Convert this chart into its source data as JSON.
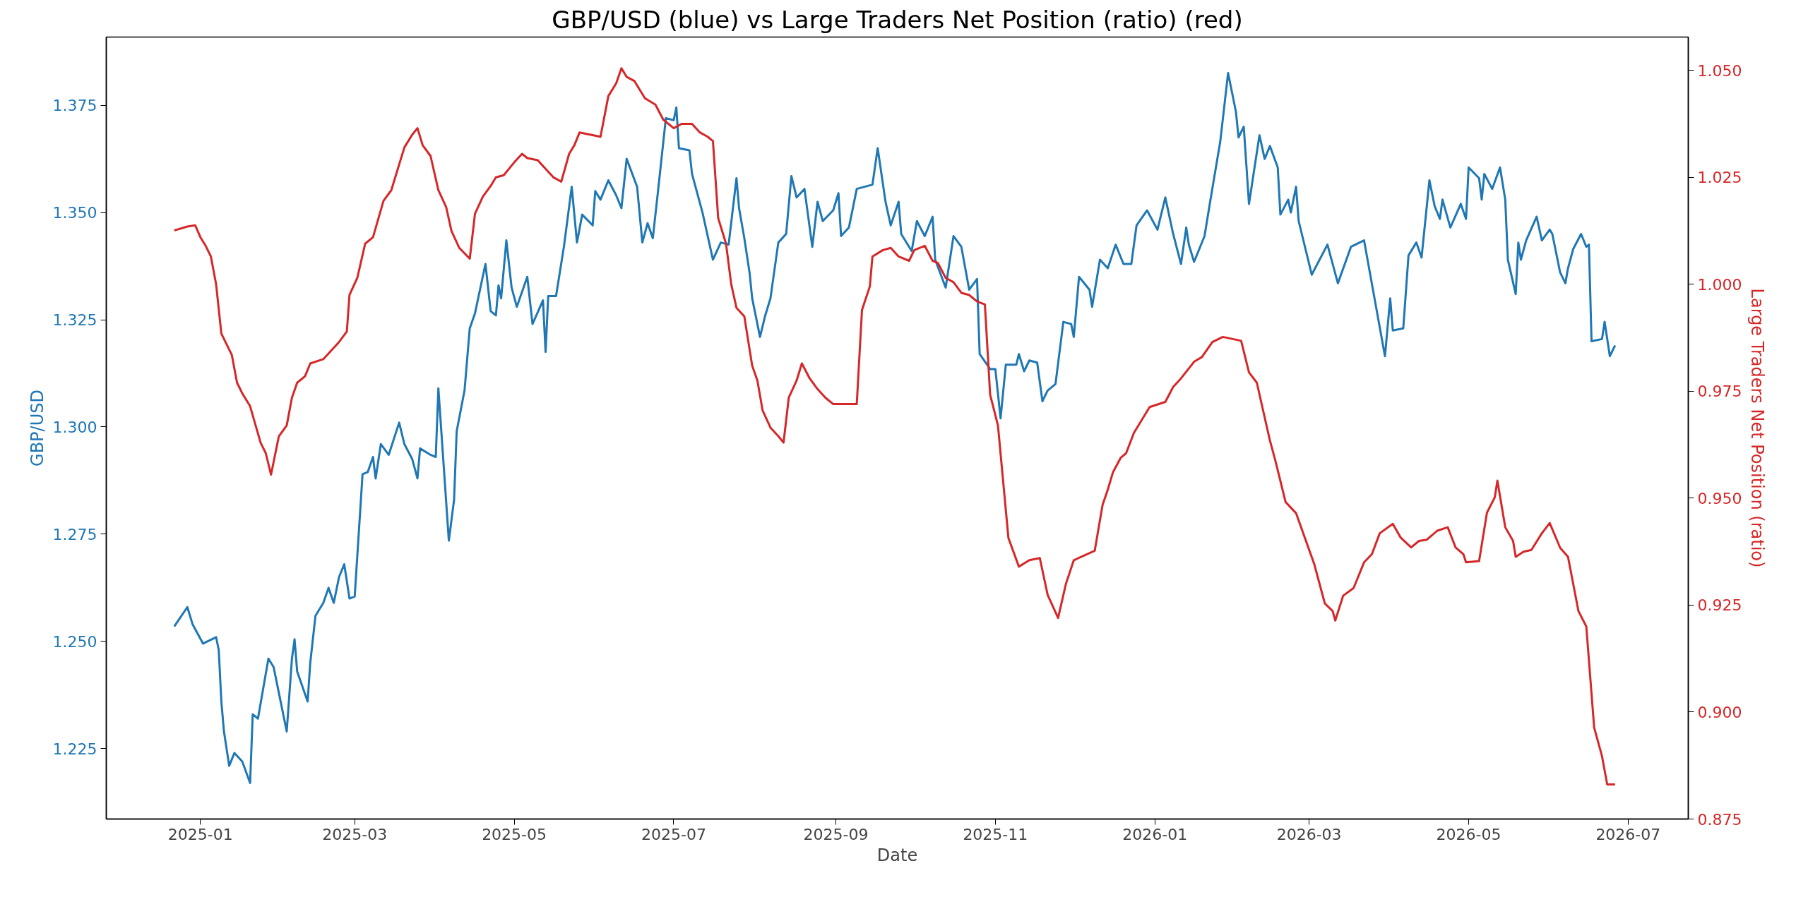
{
  "chart_data": {
    "type": "line",
    "title": "GBP/USD (blue) vs Large Traders Net Position (ratio) (red)",
    "xlabel": "Date",
    "ylabel": "GBP/USD",
    "y2label": "Large Traders Net Position (ratio)",
    "xlim": [
      "2024-11-26",
      "2026-07-24"
    ],
    "xticks": [
      {
        "value": "2025-01-01",
        "label": "2025-01"
      },
      {
        "value": "2025-03-01",
        "label": "2025-03"
      },
      {
        "value": "2025-05-01",
        "label": "2025-05"
      },
      {
        "value": "2025-07-01",
        "label": "2025-07"
      },
      {
        "value": "2025-09-01",
        "label": "2025-09"
      },
      {
        "value": "2025-11-01",
        "label": "2025-11"
      },
      {
        "value": "2026-01-01",
        "label": "2026-01"
      },
      {
        "value": "2026-03-01",
        "label": "2026-03"
      },
      {
        "value": "2026-05-01",
        "label": "2026-05"
      },
      {
        "value": "2026-07-01",
        "label": "2026-07"
      }
    ],
    "ylim": [
      1.2086,
      1.3909
    ],
    "yticks": [
      1.225,
      {
        "value": 1.25,
        "label": "1.250"
      },
      1.275,
      {
        "value": 1.3,
        "label": "1.300"
      },
      1.325,
      {
        "value": 1.35,
        "label": "1.350"
      },
      1.375
    ],
    "y2lim": [
      0.875,
      1.0578
    ],
    "y2ticks": [
      0.875,
      {
        "value": 0.9,
        "label": "0.900"
      },
      0.925,
      {
        "value": 0.95,
        "label": "0.950"
      },
      0.975,
      {
        "value": 1.0,
        "label": "1.000"
      },
      1.025,
      {
        "value": 1.05,
        "label": "1.050"
      }
    ],
    "grid": false,
    "marker": "none",
    "line_style": "solid",
    "series": [
      {
        "color": "#1f77b4",
        "axis": "y",
        "x": [
          "2024-12-22",
          "2024-12-27",
          "2024-12-29",
          "2025-01-02",
          "2025-01-07",
          "2025-01-08",
          "2025-01-09",
          "2025-01-10",
          "2025-01-12",
          "2025-01-14",
          "2025-01-17",
          "2025-01-20",
          "2025-01-21",
          "2025-01-23",
          "2025-01-27",
          "2025-01-29",
          "2025-02-03",
          "2025-02-05",
          "2025-02-06",
          "2025-02-07",
          "2025-02-11",
          "2025-02-12",
          "2025-02-14",
          "2025-02-17",
          "2025-02-19",
          "2025-02-21",
          "2025-02-23",
          "2025-02-25",
          "2025-02-27",
          "2025-03-01",
          "2025-03-04",
          "2025-03-06",
          "2025-03-08",
          "2025-03-09",
          "2025-03-11",
          "2025-03-14",
          "2025-03-18",
          "2025-03-20",
          "2025-03-23",
          "2025-03-25",
          "2025-03-26",
          "2025-03-30",
          "2025-04-01",
          "2025-04-02",
          "2025-04-06",
          "2025-04-08",
          "2025-04-09",
          "2025-04-12",
          "2025-04-14",
          "2025-04-16",
          "2025-04-20",
          "2025-04-22",
          "2025-04-24",
          "2025-04-25",
          "2025-04-26",
          "2025-04-28",
          "2025-04-30",
          "2025-05-02",
          "2025-05-06",
          "2025-05-08",
          "2025-05-12",
          "2025-05-13",
          "2025-05-14",
          "2025-05-17",
          "2025-05-20",
          "2025-05-23",
          "2025-05-25",
          "2025-05-27",
          "2025-05-31",
          "2025-06-01",
          "2025-06-03",
          "2025-06-06",
          "2025-06-09",
          "2025-06-11",
          "2025-06-13",
          "2025-06-17",
          "2025-06-19",
          "2025-06-21",
          "2025-06-23",
          "2025-06-25",
          "2025-06-28",
          "2025-07-01",
          "2025-07-02",
          "2025-07-03",
          "2025-07-07",
          "2025-07-08",
          "2025-07-12",
          "2025-07-16",
          "2025-07-19",
          "2025-07-22",
          "2025-07-25",
          "2025-07-26",
          "2025-07-28",
          "2025-07-30",
          "2025-07-31",
          "2025-08-03",
          "2025-08-05",
          "2025-08-07",
          "2025-08-10",
          "2025-08-13",
          "2025-08-15",
          "2025-08-17",
          "2025-08-20",
          "2025-08-23",
          "2025-08-25",
          "2025-08-27",
          "2025-08-31",
          "2025-09-02",
          "2025-09-03",
          "2025-09-06",
          "2025-09-09",
          "2025-09-15",
          "2025-09-17",
          "2025-09-20",
          "2025-09-22",
          "2025-09-25",
          "2025-09-26",
          "2025-09-30",
          "2025-10-02",
          "2025-10-05",
          "2025-10-08",
          "2025-10-09",
          "2025-10-13",
          "2025-10-16",
          "2025-10-19",
          "2025-10-22",
          "2025-10-25",
          "2025-10-26",
          "2025-10-30",
          "2025-11-01",
          "2025-11-03",
          "2025-11-05",
          "2025-11-09",
          "2025-11-10",
          "2025-11-12",
          "2025-11-14",
          "2025-11-17",
          "2025-11-19",
          "2025-11-21",
          "2025-11-24",
          "2025-11-27",
          "2025-11-30",
          "2025-12-01",
          "2025-12-03",
          "2025-12-07",
          "2025-12-08",
          "2025-12-11",
          "2025-12-14",
          "2025-12-17",
          "2025-12-20",
          "2025-12-23",
          "2025-12-25",
          "2025-12-29",
          "2026-01-02",
          "2026-01-05",
          "2026-01-08",
          "2026-01-11",
          "2026-01-13",
          "2026-01-14",
          "2026-01-16",
          "2026-01-20",
          "2026-01-22",
          "2026-01-26",
          "2026-01-29",
          "2026-02-01",
          "2026-02-02",
          "2026-02-04",
          "2026-02-06",
          "2026-02-10",
          "2026-02-12",
          "2026-02-14",
          "2026-02-17",
          "2026-02-18",
          "2026-02-21",
          "2026-02-22",
          "2026-02-24",
          "2026-02-25",
          "2026-03-02",
          "2026-03-08",
          "2026-03-12",
          "2026-03-17",
          "2026-03-22",
          "2026-03-30",
          "2026-04-01",
          "2026-04-02",
          "2026-04-06",
          "2026-04-08",
          "2026-04-11",
          "2026-04-13",
          "2026-04-16",
          "2026-04-18",
          "2026-04-20",
          "2026-04-21",
          "2026-04-24",
          "2026-04-28",
          "2026-04-30",
          "2026-05-01",
          "2026-05-05",
          "2026-05-06",
          "2026-05-07",
          "2026-05-10",
          "2026-05-13",
          "2026-05-15",
          "2026-05-16",
          "2026-05-19",
          "2026-05-20",
          "2026-05-21",
          "2026-05-23",
          "2026-05-27",
          "2026-05-29",
          "2026-06-01",
          "2026-06-02",
          "2026-06-05",
          "2026-06-07",
          "2026-06-08",
          "2026-06-10",
          "2026-06-13",
          "2026-06-15",
          "2026-06-16",
          "2026-06-17",
          "2026-06-21",
          "2026-06-22",
          "2026-06-24",
          "2026-06-26"
        ],
        "values": [
          1.2535,
          1.258,
          1.254,
          1.2495,
          1.251,
          1.248,
          1.236,
          1.229,
          1.221,
          1.224,
          1.222,
          1.217,
          1.233,
          1.232,
          1.246,
          1.244,
          1.229,
          1.246,
          1.2505,
          1.243,
          1.236,
          1.245,
          1.256,
          1.259,
          1.2625,
          1.259,
          1.265,
          1.268,
          1.26,
          1.2605,
          1.289,
          1.2895,
          1.293,
          1.288,
          1.296,
          1.2935,
          1.301,
          1.296,
          1.2925,
          1.288,
          1.295,
          1.2935,
          1.293,
          1.309,
          1.2735,
          1.283,
          1.299,
          1.3085,
          1.323,
          1.3265,
          1.338,
          1.327,
          1.326,
          1.333,
          1.33,
          1.3435,
          1.3325,
          1.328,
          1.335,
          1.324,
          1.3295,
          1.3175,
          1.3305,
          1.3305,
          1.342,
          1.356,
          1.343,
          1.3495,
          1.347,
          1.355,
          1.353,
          1.3575,
          1.354,
          1.351,
          1.3625,
          1.356,
          1.343,
          1.3475,
          1.344,
          1.355,
          1.372,
          1.3715,
          1.3745,
          1.365,
          1.3645,
          1.359,
          1.35,
          1.339,
          1.343,
          1.3425,
          1.358,
          1.351,
          1.344,
          1.336,
          1.33,
          1.321,
          1.326,
          1.33,
          1.343,
          1.345,
          1.3585,
          1.3535,
          1.3555,
          1.342,
          1.3525,
          1.348,
          1.3505,
          1.3545,
          1.3445,
          1.3465,
          1.3555,
          1.3565,
          1.365,
          1.3525,
          1.347,
          1.3525,
          1.345,
          1.341,
          1.348,
          1.3445,
          1.349,
          1.339,
          1.3325,
          1.3445,
          1.342,
          1.332,
          1.3345,
          1.317,
          1.3135,
          1.3135,
          1.302,
          1.3145,
          1.3145,
          1.317,
          1.313,
          1.3155,
          1.315,
          1.306,
          1.3085,
          1.31,
          1.3245,
          1.324,
          1.321,
          1.335,
          1.332,
          1.328,
          1.339,
          1.337,
          1.3425,
          1.338,
          1.338,
          1.347,
          1.3505,
          1.346,
          1.3535,
          1.345,
          1.338,
          1.3465,
          1.3425,
          1.3385,
          1.3445,
          1.352,
          1.3665,
          1.3825,
          1.3735,
          1.3675,
          1.37,
          1.352,
          1.368,
          1.3625,
          1.3655,
          1.3605,
          1.3495,
          1.353,
          1.35,
          1.356,
          1.348,
          1.3355,
          1.3425,
          1.3335,
          1.342,
          1.3435,
          1.3165,
          1.33,
          1.3225,
          1.323,
          1.34,
          1.343,
          1.3395,
          1.3575,
          1.3515,
          1.3485,
          1.353,
          1.3465,
          1.352,
          1.3485,
          1.3605,
          1.358,
          1.353,
          1.359,
          1.3555,
          1.3605,
          1.353,
          1.339,
          1.331,
          1.343,
          1.339,
          1.3435,
          1.349,
          1.3435,
          1.346,
          1.345,
          1.336,
          1.3335,
          1.337,
          1.3415,
          1.345,
          1.342,
          1.3425,
          1.32,
          1.3205,
          1.3245,
          1.3165,
          1.319
        ]
      },
      {
        "color": "#d62728",
        "axis": "y2",
        "x": [
          "2024-12-22",
          "2024-12-27",
          "2024-12-30",
          "2025-01-01",
          "2025-01-03",
          "2025-01-05",
          "2025-01-07",
          "2025-01-09",
          "2025-01-13",
          "2025-01-15",
          "2025-01-17",
          "2025-01-20",
          "2025-01-24",
          "2025-01-26",
          "2025-01-28",
          "2025-01-31",
          "2025-02-03",
          "2025-02-05",
          "2025-02-07",
          "2025-02-10",
          "2025-02-12",
          "2025-02-17",
          "2025-02-20",
          "2025-02-23",
          "2025-02-26",
          "2025-02-27",
          "2025-03-02",
          "2025-03-05",
          "2025-03-08",
          "2025-03-12",
          "2025-03-15",
          "2025-03-18",
          "2025-03-20",
          "2025-03-23",
          "2025-03-25",
          "2025-03-27",
          "2025-03-30",
          "2025-04-02",
          "2025-04-05",
          "2025-04-07",
          "2025-04-10",
          "2025-04-14",
          "2025-04-16",
          "2025-04-19",
          "2025-04-22",
          "2025-04-24",
          "2025-04-27",
          "2025-05-01",
          "2025-05-04",
          "2025-05-06",
          "2025-05-10",
          "2025-05-13",
          "2025-05-16",
          "2025-05-19",
          "2025-05-22",
          "2025-05-24",
          "2025-05-26",
          "2025-05-30",
          "2025-06-03",
          "2025-06-06",
          "2025-06-09",
          "2025-06-11",
          "2025-06-13",
          "2025-06-16",
          "2025-06-20",
          "2025-06-24",
          "2025-06-27",
          "2025-07-01",
          "2025-07-04",
          "2025-07-08",
          "2025-07-11",
          "2025-07-14",
          "2025-07-16",
          "2025-07-18",
          "2025-07-21",
          "2025-07-23",
          "2025-07-25",
          "2025-07-28",
          "2025-07-31",
          "2025-08-02",
          "2025-08-04",
          "2025-08-07",
          "2025-08-10",
          "2025-08-12",
          "2025-08-14",
          "2025-08-17",
          "2025-08-19",
          "2025-08-22",
          "2025-08-25",
          "2025-08-28",
          "2025-08-31",
          "2025-09-03",
          "2025-09-09",
          "2025-09-11",
          "2025-09-14",
          "2025-09-15",
          "2025-09-19",
          "2025-09-22",
          "2025-09-25",
          "2025-09-29",
          "2025-10-01",
          "2025-10-05",
          "2025-10-08",
          "2025-10-10",
          "2025-10-13",
          "2025-10-16",
          "2025-10-19",
          "2025-10-22",
          "2025-10-25",
          "2025-10-28",
          "2025-10-30",
          "2025-11-02",
          "2025-11-06",
          "2025-11-10",
          "2025-11-14",
          "2025-11-18",
          "2025-11-21",
          "2025-11-25",
          "2025-11-28",
          "2025-12-01",
          "2025-12-09",
          "2025-12-12",
          "2025-12-14",
          "2025-12-16",
          "2025-12-19",
          "2025-12-21",
          "2025-12-24",
          "2025-12-30",
          "2026-01-05",
          "2026-01-08",
          "2026-01-11",
          "2026-01-16",
          "2026-01-19",
          "2026-01-23",
          "2026-01-27",
          "2026-02-03",
          "2026-02-06",
          "2026-02-09",
          "2026-02-14",
          "2026-02-16",
          "2026-02-20",
          "2026-02-24",
          "2026-03-03",
          "2026-03-07",
          "2026-03-10",
          "2026-03-11",
          "2026-03-14",
          "2026-03-18",
          "2026-03-22",
          "2026-03-25",
          "2026-03-28",
          "2026-04-02",
          "2026-04-05",
          "2026-04-09",
          "2026-04-12",
          "2026-04-15",
          "2026-04-19",
          "2026-04-23",
          "2026-04-26",
          "2026-04-29",
          "2026-04-30",
          "2026-05-05",
          "2026-05-08",
          "2026-05-11",
          "2026-05-12",
          "2026-05-15",
          "2026-05-18",
          "2026-05-19",
          "2026-05-22",
          "2026-05-25",
          "2026-05-29",
          "2026-06-01",
          "2026-06-05",
          "2026-06-08",
          "2026-06-12",
          "2026-06-15",
          "2026-06-18",
          "2026-06-21",
          "2026-06-23",
          "2026-06-26"
        ],
        "values": [
          1.0126,
          1.0135,
          1.0138,
          1.011,
          1.009,
          1.0065,
          1.0,
          0.9885,
          0.9835,
          0.977,
          0.9745,
          0.9715,
          0.963,
          0.9605,
          0.9555,
          0.9645,
          0.967,
          0.9735,
          0.977,
          0.9785,
          0.9815,
          0.9825,
          0.9845,
          0.9865,
          0.989,
          0.9975,
          1.0015,
          1.0095,
          1.011,
          1.0195,
          1.022,
          1.028,
          1.032,
          1.035,
          1.0365,
          1.0325,
          1.03,
          1.022,
          1.018,
          1.0125,
          1.0085,
          1.006,
          1.0165,
          1.0205,
          1.023,
          1.025,
          1.0255,
          1.0285,
          1.0305,
          1.0295,
          1.029,
          1.027,
          1.025,
          1.024,
          1.0305,
          1.0325,
          1.0355,
          1.035,
          1.0345,
          1.044,
          1.047,
          1.0505,
          1.0485,
          1.0475,
          1.0435,
          1.042,
          1.0385,
          1.0365,
          1.0375,
          1.0375,
          1.0355,
          1.0345,
          1.0335,
          1.0155,
          1.0095,
          1.0,
          0.9945,
          0.9925,
          0.981,
          0.9775,
          0.9705,
          0.9665,
          0.9645,
          0.963,
          0.9735,
          0.9775,
          0.9815,
          0.978,
          0.9755,
          0.9735,
          0.972,
          0.972,
          0.972,
          0.994,
          0.9995,
          1.0065,
          1.008,
          1.0085,
          1.0065,
          1.0055,
          1.008,
          1.009,
          1.0055,
          1.005,
          1.0015,
          1.0005,
          0.998,
          0.9975,
          0.996,
          0.9953,
          0.9742,
          0.967,
          0.9407,
          0.934,
          0.9355,
          0.936,
          0.9274,
          0.922,
          0.93,
          0.9355,
          0.9377,
          0.9484,
          0.952,
          0.9561,
          0.9595,
          0.9605,
          0.9653,
          0.9713,
          0.9725,
          0.976,
          0.978,
          0.9819,
          0.983,
          0.9865,
          0.9877,
          0.9868,
          0.9794,
          0.977,
          0.9635,
          0.959,
          0.9491,
          0.9465,
          0.9345,
          0.9254,
          0.9236,
          0.9214,
          0.9272,
          0.929,
          0.935,
          0.9369,
          0.9418,
          0.944,
          0.9408,
          0.9385,
          0.94,
          0.9403,
          0.9424,
          0.9432,
          0.9385,
          0.9369,
          0.935,
          0.9353,
          0.9466,
          0.9502,
          0.9541,
          0.9432,
          0.94,
          0.9363,
          0.9375,
          0.9379,
          0.9418,
          0.9442,
          0.9384,
          0.9363,
          0.9236,
          0.92,
          0.8964,
          0.8897,
          0.8831,
          0.8831
        ]
      }
    ]
  }
}
